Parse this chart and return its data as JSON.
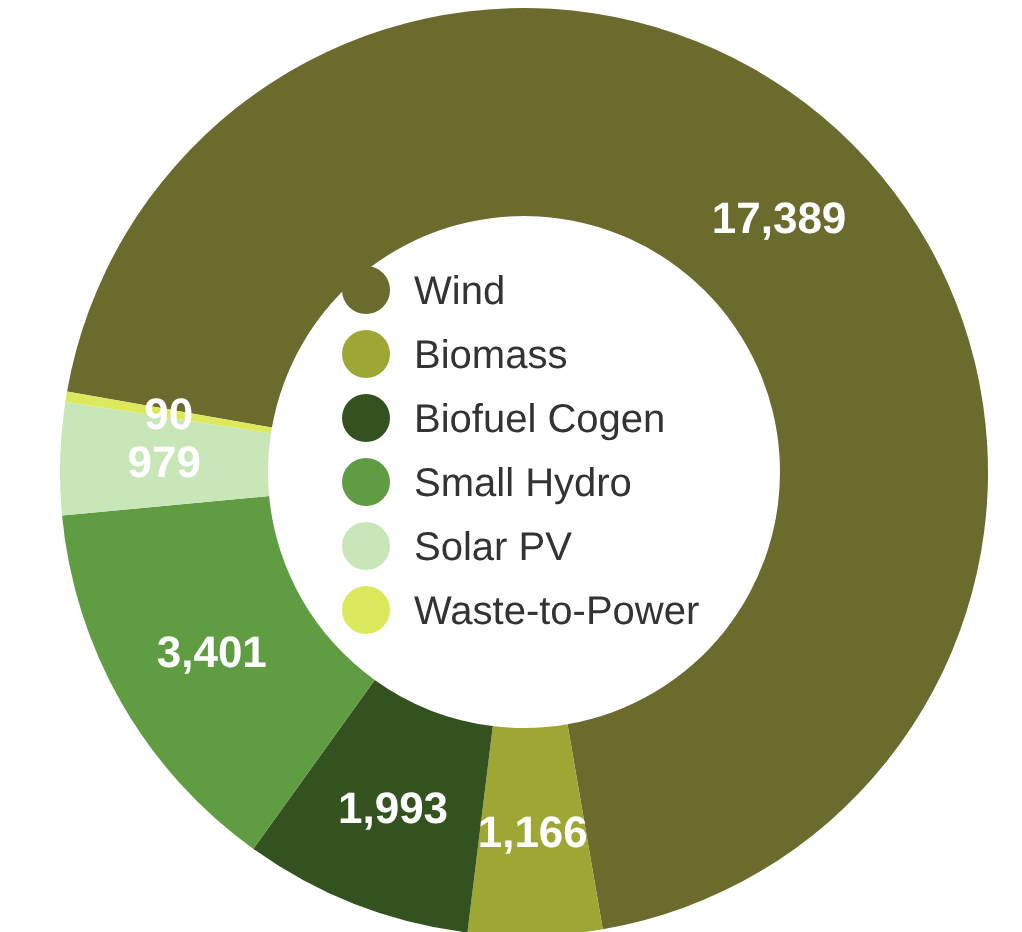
{
  "chart_data": {
    "type": "donut",
    "categories": [
      "Wind",
      "Biomass",
      "Biofuel Cogen",
      "Small Hydro",
      "Solar PV",
      "Waste-to-Power"
    ],
    "values": [
      17389,
      1166,
      1993,
      3401,
      979,
      90
    ],
    "colors": [
      "#6b6b2d",
      "#9ea733",
      "#34521f",
      "#5f9c42",
      "#c9e6b9",
      "#dce95c"
    ],
    "value_labels": [
      "17,389",
      "1,166",
      "1,993",
      "3,401",
      "979",
      "90"
    ],
    "legend": "center"
  }
}
